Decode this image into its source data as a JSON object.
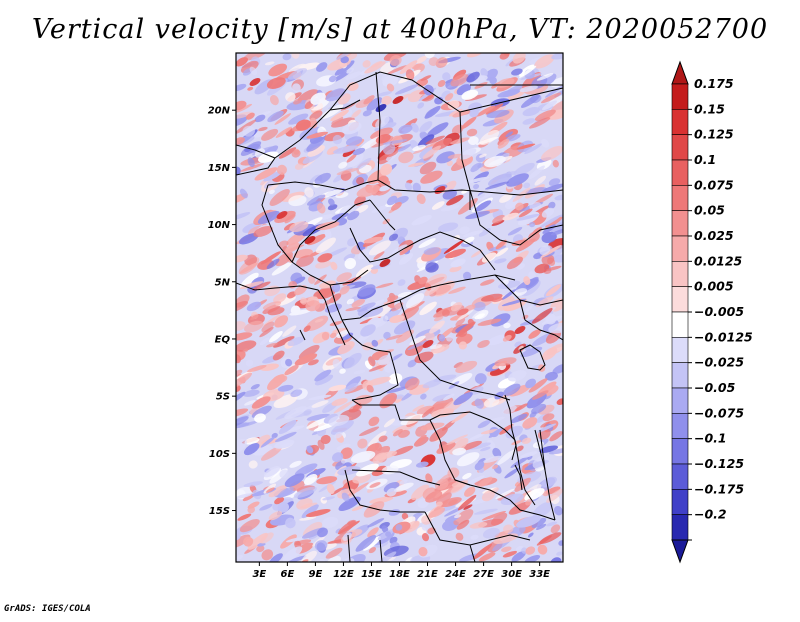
{
  "title": "Vertical velocity [m/s] at 400hPa, VT: 2020052700",
  "credit": "GrADS: IGES/COLA",
  "map": {
    "lon_range": [
      0.5,
      35.5
    ],
    "lat_range": [
      -19.5,
      25
    ],
    "lat_labels": [
      {
        "label": "20N",
        "value": 20
      },
      {
        "label": "15N",
        "value": 15
      },
      {
        "label": "10N",
        "value": 10
      },
      {
        "label": "5N",
        "value": 5
      },
      {
        "label": "EQ",
        "value": 0
      },
      {
        "label": "5S",
        "value": -5
      },
      {
        "label": "10S",
        "value": -10
      },
      {
        "label": "15S",
        "value": -15
      }
    ],
    "lon_labels": [
      {
        "label": "3E",
        "value": 3
      },
      {
        "label": "6E",
        "value": 6
      },
      {
        "label": "9E",
        "value": 9
      },
      {
        "label": "12E",
        "value": 12
      },
      {
        "label": "15E",
        "value": 15
      },
      {
        "label": "18E",
        "value": 18
      },
      {
        "label": "21E",
        "value": 21
      },
      {
        "label": "24E",
        "value": 24
      },
      {
        "label": "27E",
        "value": 27
      },
      {
        "label": "30E",
        "value": 30
      },
      {
        "label": "33E",
        "value": 33
      }
    ]
  },
  "colorbar": {
    "levels": [
      {
        "label": "0.175",
        "color": "#c41c1c"
      },
      {
        "label": "0.15",
        "color": "#d93232"
      },
      {
        "label": "0.125",
        "color": "#e04848"
      },
      {
        "label": "0.1",
        "color": "#e86060"
      },
      {
        "label": "0.075",
        "color": "#ee7878"
      },
      {
        "label": "0.05",
        "color": "#f29090"
      },
      {
        "label": "0.025",
        "color": "#f6aaaa"
      },
      {
        "label": "0.0125",
        "color": "#f9c4c4"
      },
      {
        "label": "0.005",
        "color": "#fcdcdc"
      },
      {
        "label": "−0.005",
        "color": "#ffffff"
      },
      {
        "label": "−0.0125",
        "color": "#dcdcfa"
      },
      {
        "label": "−0.025",
        "color": "#c4c4f6"
      },
      {
        "label": "−0.05",
        "color": "#aaaaf2"
      },
      {
        "label": "−0.075",
        "color": "#9090ec"
      },
      {
        "label": "−0.1",
        "color": "#7676e4"
      },
      {
        "label": "−0.125",
        "color": "#5c5cd8"
      },
      {
        "label": "−0.175",
        "color": "#4040c8"
      },
      {
        "label": "−0.2",
        "color": "#2828b0"
      }
    ],
    "top_color": "#b01818",
    "bottom_color": "#1a1a98"
  }
}
